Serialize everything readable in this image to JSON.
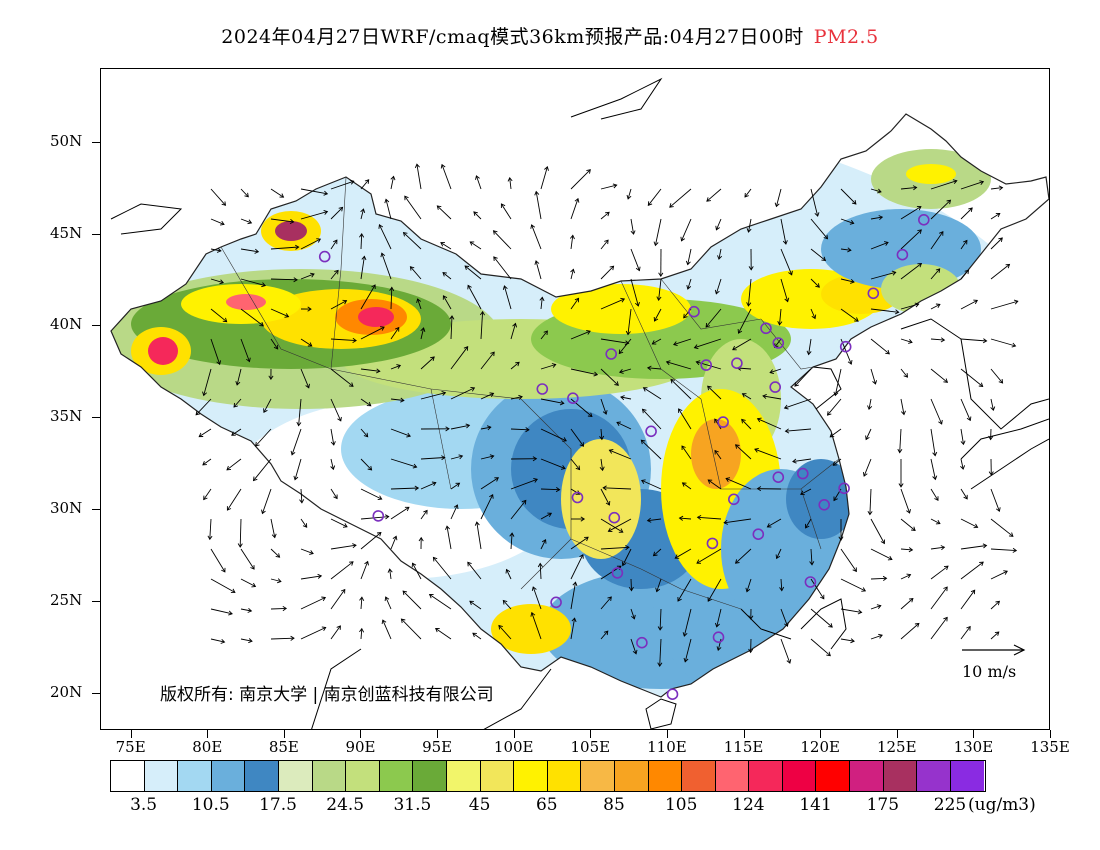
{
  "title": {
    "main": "2024年04月27日WRF/cmaq模式36km预报产品:04月27日00时",
    "pollutant": "PM2.5",
    "pollutant_color": "#e8323c"
  },
  "axes": {
    "lat_labels": [
      "50N",
      "45N",
      "40N",
      "35N",
      "30N",
      "25N",
      "20N"
    ],
    "lat_values": [
      50,
      45,
      40,
      35,
      30,
      25,
      20
    ],
    "lon_labels": [
      "75E",
      "80E",
      "85E",
      "90E",
      "95E",
      "100E",
      "105E",
      "110E",
      "115E",
      "120E",
      "125E",
      "130E",
      "135E"
    ],
    "lon_values": [
      75,
      80,
      85,
      90,
      95,
      100,
      105,
      110,
      115,
      120,
      125,
      130,
      135
    ],
    "lon_range": [
      73,
      135
    ],
    "lat_range": [
      18,
      54
    ]
  },
  "copyright": "版权所有: 南京大学 | 南京创蓝科技有限公司",
  "wind_reference": {
    "label": "10 m/s"
  },
  "colorbar": {
    "colors": [
      "#ffffff",
      "#d6eefa",
      "#a3d8f2",
      "#6aafdc",
      "#3f87c2",
      "#dcebbd",
      "#b9d987",
      "#c3e07c",
      "#8cc94e",
      "#6aaa38",
      "#f2f56a",
      "#f2e65a",
      "#fff200",
      "#ffe100",
      "#f7b845",
      "#f7a421",
      "#ff8800",
      "#f06030",
      "#ff6470",
      "#f5285a",
      "#ee0044",
      "#ff0000",
      "#d02080",
      "#a83060",
      "#9633cc",
      "#8a2be2"
    ],
    "labels": [
      "3.5",
      "10.5",
      "17.5",
      "24.5",
      "31.5",
      "45",
      "65",
      "85",
      "105",
      "124",
      "141",
      "175",
      "225"
    ],
    "label_positions": [
      1,
      3,
      5,
      7,
      9,
      11,
      13,
      15,
      17,
      19,
      21,
      23,
      25
    ],
    "unit": "(ug/m3)"
  },
  "stations": [
    [
      126.7,
      45.8
    ],
    [
      125.3,
      43.9
    ],
    [
      123.4,
      41.8
    ],
    [
      121.6,
      38.9
    ],
    [
      117.2,
      39.1
    ],
    [
      116.4,
      39.9
    ],
    [
      114.5,
      38.0
    ],
    [
      112.5,
      37.9
    ],
    [
      111.7,
      40.8
    ],
    [
      106.3,
      38.5
    ],
    [
      103.8,
      36.1
    ],
    [
      101.8,
      36.6
    ],
    [
      108.9,
      34.3
    ],
    [
      113.6,
      34.8
    ],
    [
      117.0,
      36.7
    ],
    [
      117.2,
      31.8
    ],
    [
      118.8,
      32.0
    ],
    [
      121.5,
      31.2
    ],
    [
      120.2,
      30.3
    ],
    [
      114.3,
      30.6
    ],
    [
      112.9,
      28.2
    ],
    [
      115.9,
      28.7
    ],
    [
      119.3,
      26.1
    ],
    [
      113.3,
      23.1
    ],
    [
      108.3,
      22.8
    ],
    [
      110.3,
      20.0
    ],
    [
      106.7,
      26.6
    ],
    [
      102.7,
      25.0
    ],
    [
      104.1,
      30.7
    ],
    [
      106.5,
      29.6
    ],
    [
      91.1,
      29.7
    ],
    [
      87.6,
      43.8
    ]
  ]
}
